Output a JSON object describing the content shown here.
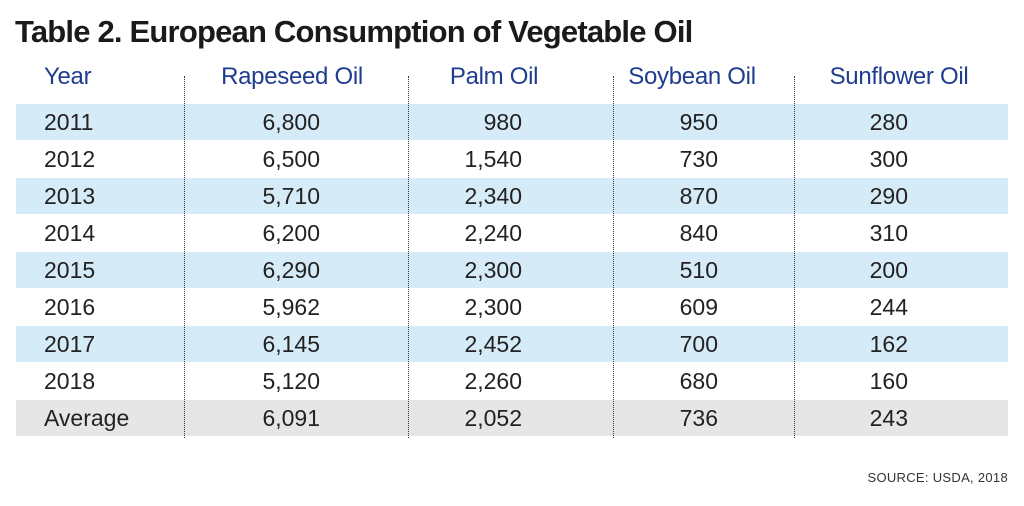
{
  "chart_data": {
    "type": "table",
    "title": "Table 2.  European Consumption of Vegetable Oil",
    "columns": [
      "Year",
      "Rapeseed Oil",
      "Palm Oil",
      "Soybean Oil",
      "Sunflower Oil"
    ],
    "rows": [
      [
        "2011",
        "6,800",
        "980",
        "950",
        "280"
      ],
      [
        "2012",
        "6,500",
        "1,540",
        "730",
        "300"
      ],
      [
        "2013",
        "5,710",
        "2,340",
        "870",
        "290"
      ],
      [
        "2014",
        "6,200",
        "2,240",
        "840",
        "310"
      ],
      [
        "2015",
        "6,290",
        "2,300",
        "510",
        "200"
      ],
      [
        "2016",
        "5,962",
        "2,300",
        "609",
        "244"
      ],
      [
        "2017",
        "6,145",
        "2,452",
        "700",
        "162"
      ],
      [
        "2018",
        "5,120",
        "2,260",
        "680",
        "160"
      ],
      [
        "Average",
        "6,091",
        "2,052",
        "736",
        "243"
      ]
    ],
    "source": "SOURCE: USDA, 2018",
    "colors": {
      "header_text": "#1f3d8f",
      "row_shade": "#d6ebf8",
      "average_shade": "#e6e6e6",
      "body_text": "#222222"
    }
  }
}
